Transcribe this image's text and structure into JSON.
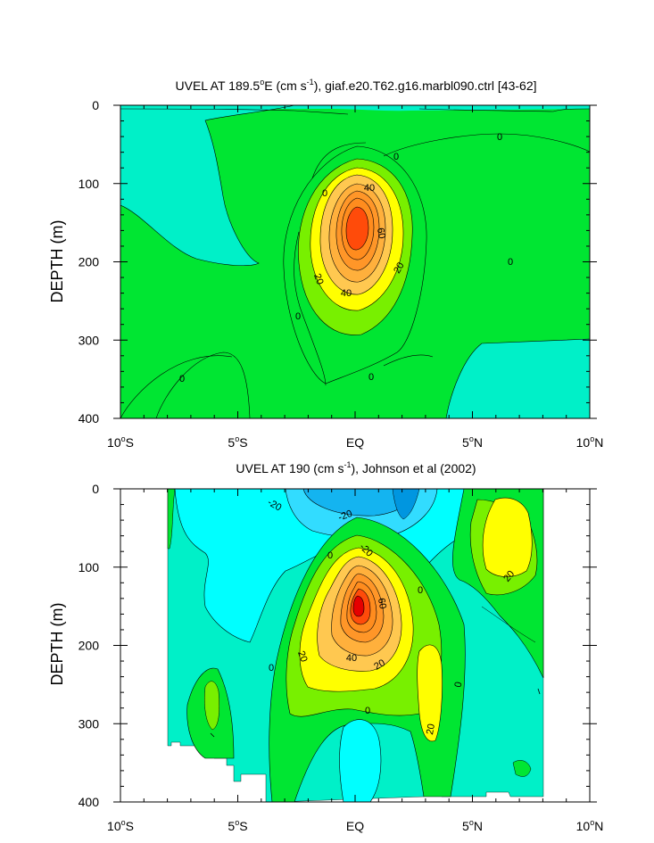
{
  "chart_data": [
    {
      "type": "contour",
      "title_main": "UVEL AT 189.5",
      "title_sup_o": "o",
      "title_unit_pre": "E (cm s",
      "title_sup_unit": "-1",
      "title_rest": "), giaf.e20.T62.g16.marbl090.ctrl [43-62]",
      "ylabel": "DEPTH (m)",
      "xlim": [
        -10,
        10
      ],
      "ylim": [
        400,
        0
      ],
      "x_ticks": [
        {
          "pre": "10",
          "sup": "o",
          "post": "S"
        },
        {
          "pre": "5",
          "sup": "o",
          "post": "S"
        },
        {
          "pre": "EQ",
          "sup": "",
          "post": ""
        },
        {
          "pre": "5",
          "sup": "o",
          "post": "N"
        },
        {
          "pre": "10",
          "sup": "o",
          "post": "N"
        }
      ],
      "y_ticks": [
        "0",
        "100",
        "200",
        "300",
        "400"
      ],
      "contour_labels": [
        "0",
        "0",
        "0",
        "0",
        "0",
        "0",
        "0",
        "40",
        "60",
        "20",
        "20",
        "40"
      ]
    },
    {
      "type": "contour",
      "title_main": "UVEL AT 190 (cm s",
      "title_sup_unit": "-1",
      "title_rest": "), Johnson et al (2002)",
      "ylabel": "DEPTH (m)",
      "xlim": [
        -10,
        10
      ],
      "ylim": [
        400,
        0
      ],
      "x_ticks": [
        {
          "pre": "10",
          "sup": "o",
          "post": "S"
        },
        {
          "pre": "5",
          "sup": "o",
          "post": "S"
        },
        {
          "pre": "EQ",
          "sup": "",
          "post": ""
        },
        {
          "pre": "5",
          "sup": "o",
          "post": "N"
        },
        {
          "pre": "10",
          "sup": "o",
          "post": "N"
        }
      ],
      "y_ticks": [
        "0",
        "100",
        "200",
        "300",
        "400"
      ],
      "contour_labels": [
        "-20",
        "-20",
        "-20",
        "0",
        "0",
        "60",
        "20",
        "40",
        "20",
        "0",
        "0",
        "0",
        "20",
        "20"
      ]
    }
  ],
  "colors": {
    "cyan": "#00ffff",
    "aquamarine": "#00f0c8",
    "green": "#00e632",
    "light_green": "#78f000",
    "yellow": "#ffff00",
    "light_orange": "#ffc850",
    "orange": "#ff8c1e",
    "red_orange": "#ff4b0a",
    "red": "#e60000",
    "light_blue": "#32dcff",
    "sky_blue": "#14b4f0"
  }
}
